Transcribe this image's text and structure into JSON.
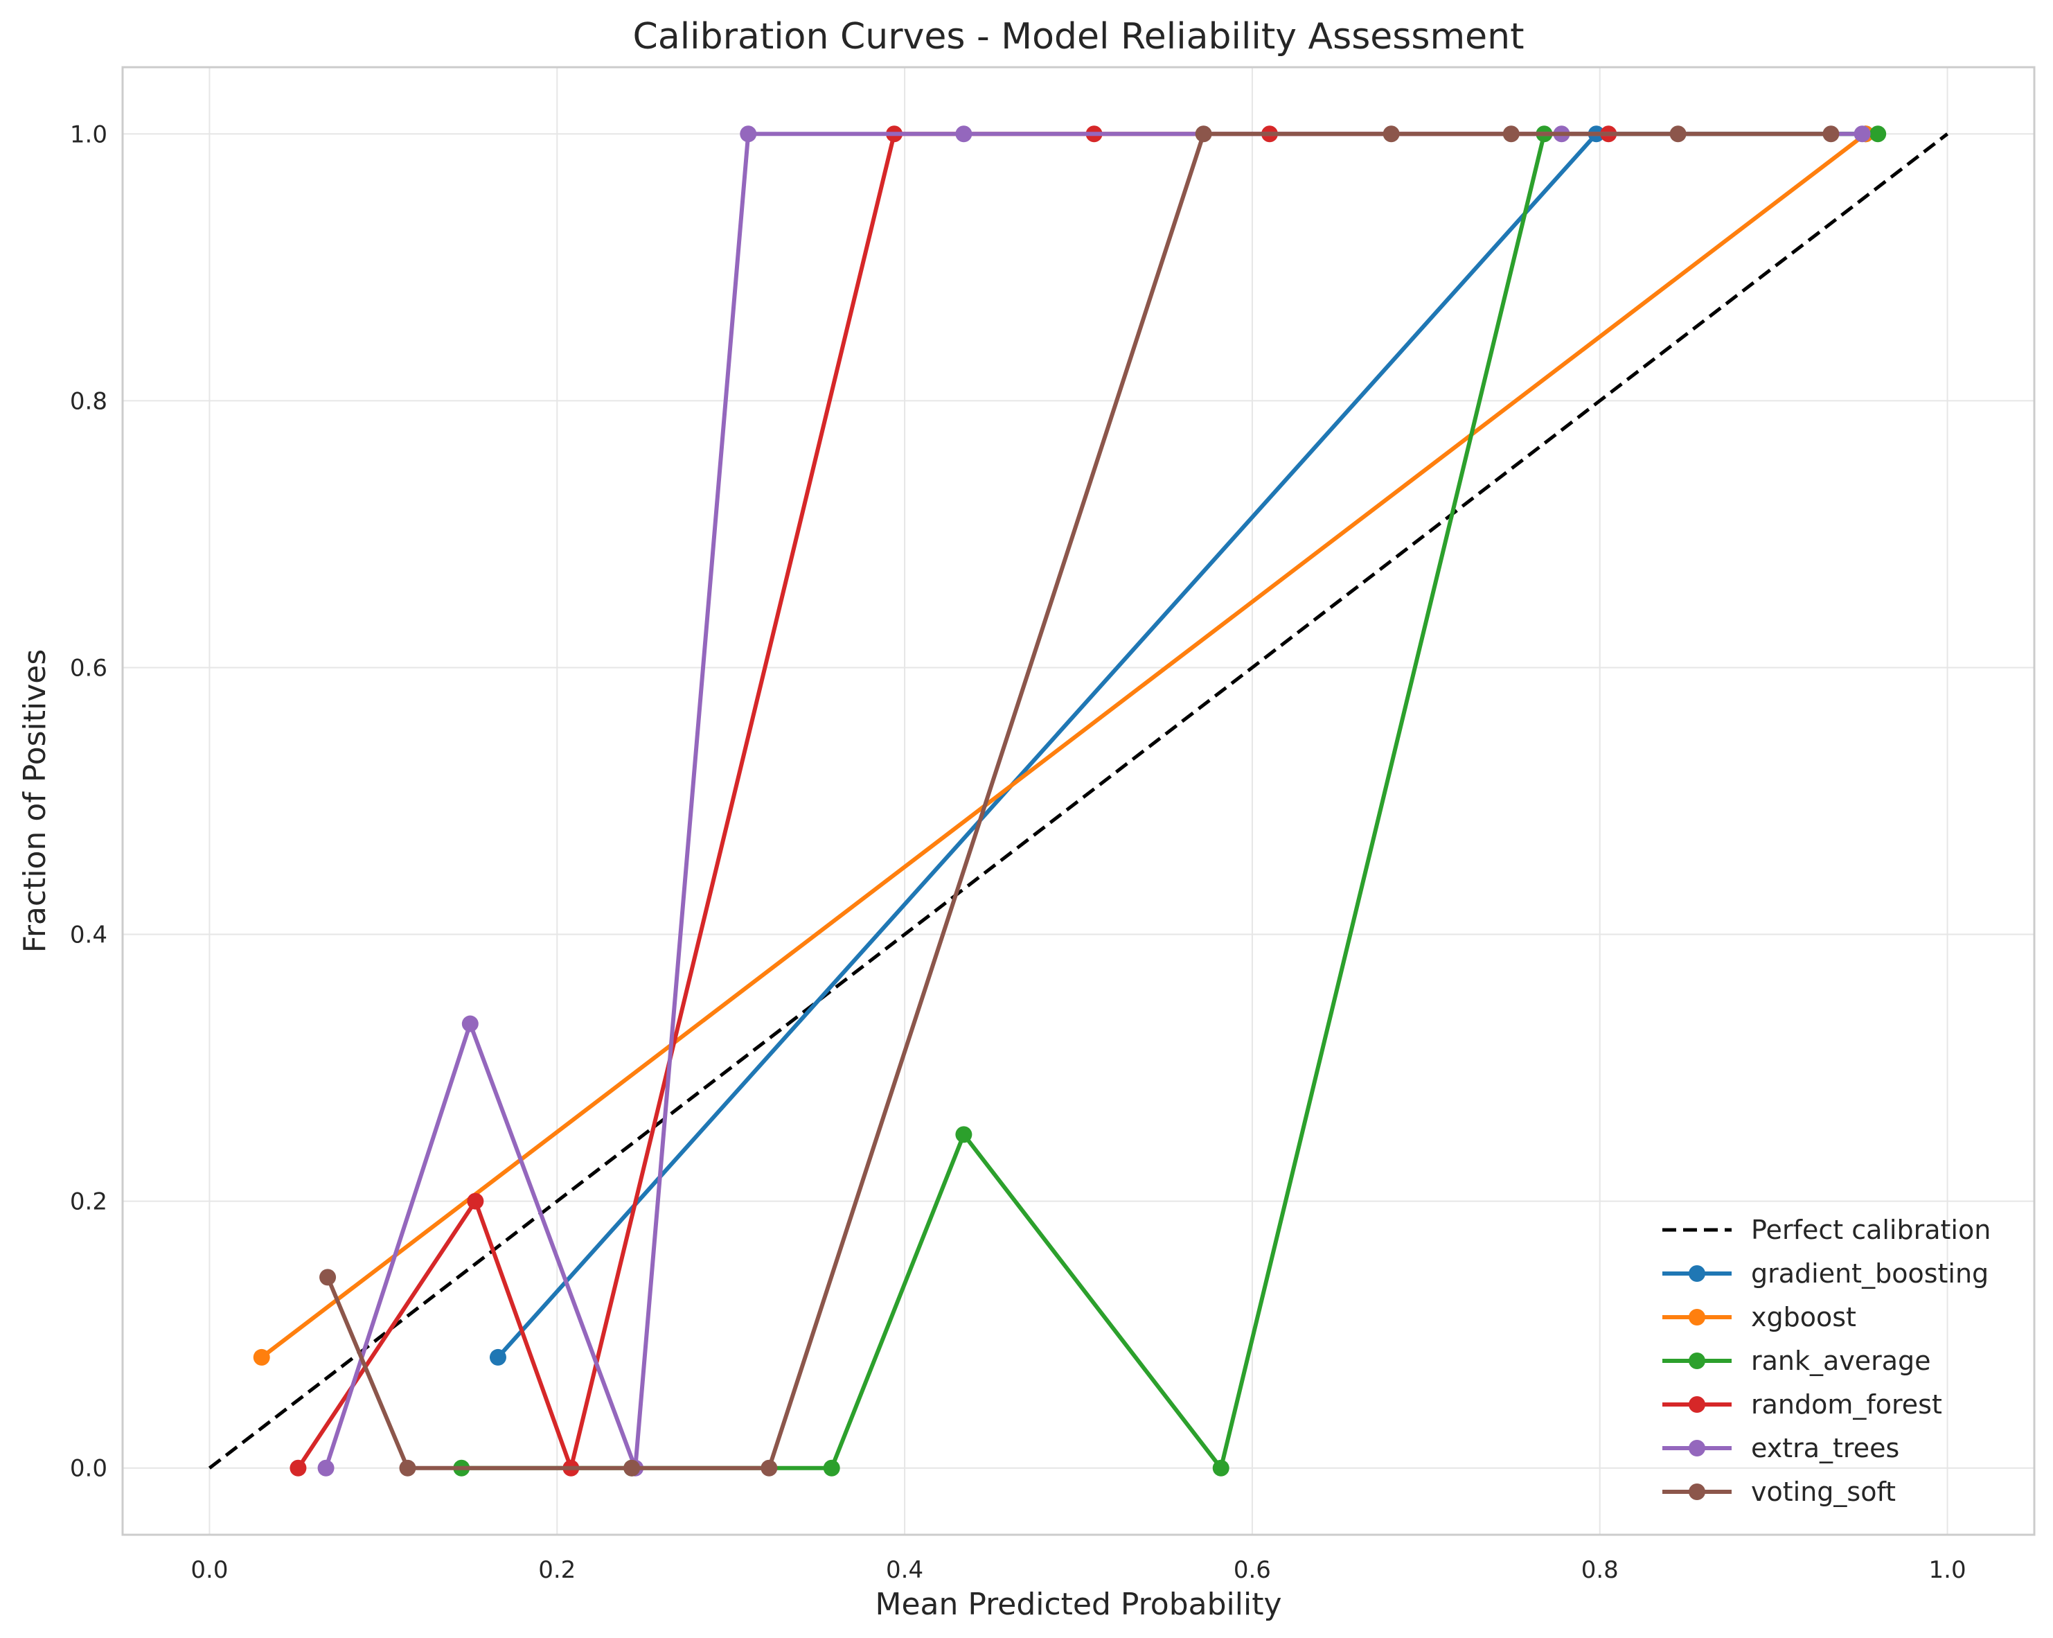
{
  "chart_data": {
    "type": "line",
    "title": "Calibration Curves - Model Reliability Assessment",
    "xlabel": "Mean Predicted Probability",
    "ylabel": "Fraction of Positives",
    "xlim": [
      -0.05,
      1.05
    ],
    "ylim": [
      -0.05,
      1.05
    ],
    "xticks": [
      "0.0",
      "0.2",
      "0.4",
      "0.6",
      "0.8",
      "1.0"
    ],
    "yticks": [
      "0.0",
      "0.2",
      "0.4",
      "0.6",
      "0.8",
      "1.0"
    ],
    "grid": true,
    "legend_position": "lower-right",
    "reference": {
      "name": "Perfect calibration",
      "x": [
        0,
        1
      ],
      "y": [
        0,
        1
      ],
      "color": "#000000",
      "style": "dashed"
    },
    "series": [
      {
        "name": "gradient_boosting",
        "color": "#1f77b4",
        "x": [
          0.166,
          0.798,
          0.953
        ],
        "y": [
          0.083,
          1.0,
          1.0
        ]
      },
      {
        "name": "xgboost",
        "color": "#ff7f0e",
        "x": [
          0.03,
          0.953
        ],
        "y": [
          0.083,
          1.0
        ]
      },
      {
        "name": "rank_average",
        "color": "#2ca02c",
        "x": [
          0.145,
          0.243,
          0.358,
          0.434,
          0.582,
          0.768,
          0.96
        ],
        "y": [
          0.0,
          0.0,
          0.0,
          0.25,
          0.0,
          1.0,
          1.0
        ]
      },
      {
        "name": "random_forest",
        "color": "#d62728",
        "x": [
          0.051,
          0.153,
          0.208,
          0.394,
          0.509,
          0.61,
          0.805
        ],
        "y": [
          0.0,
          0.2,
          0.0,
          1.0,
          1.0,
          1.0,
          1.0
        ]
      },
      {
        "name": "extra_trees",
        "color": "#9467bd",
        "x": [
          0.067,
          0.15,
          0.245,
          0.31,
          0.434,
          0.778,
          0.951
        ],
        "y": [
          0.0,
          0.333,
          0.0,
          1.0,
          1.0,
          1.0,
          1.0
        ]
      },
      {
        "name": "voting_soft",
        "color": "#8c564b",
        "x": [
          0.068,
          0.114,
          0.243,
          0.322,
          0.572,
          0.68,
          0.749,
          0.845,
          0.933
        ],
        "y": [
          0.143,
          0.0,
          0.0,
          0.0,
          1.0,
          1.0,
          1.0,
          1.0,
          1.0
        ]
      }
    ]
  }
}
